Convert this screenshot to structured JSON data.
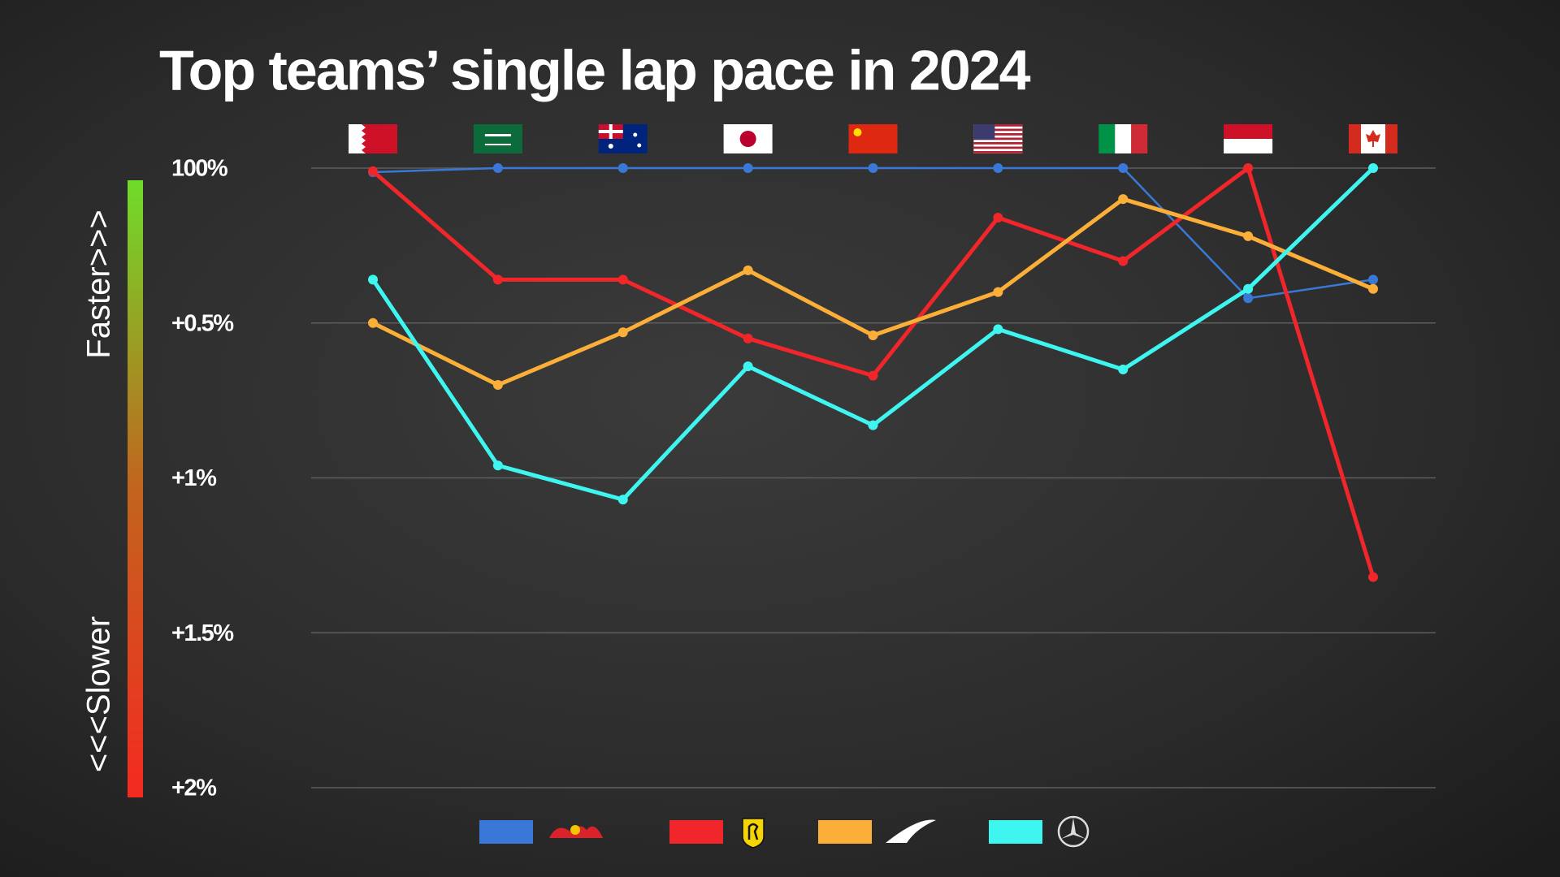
{
  "chart_data": {
    "type": "line",
    "title": "Top teams’ single lap pace in 2024",
    "side_labels": {
      "faster": "Faster>>>",
      "slower": "<<<Slower"
    },
    "categories": [
      null,
      null,
      null,
      null,
      null,
      null,
      null,
      null,
      null
    ],
    "series": [
      {
        "color": "#3a78d8",
        "values": [
          0.013,
          0,
          0,
          0,
          0,
          0,
          0,
          0.42,
          0.36
        ]
      },
      {
        "color": "#f0262a",
        "values": [
          0.01,
          0.36,
          0.36,
          0.55,
          0.67,
          0.16,
          0.3,
          0,
          1.32
        ]
      },
      {
        "color": "#fbae38",
        "values": [
          0.5,
          0.7,
          0.53,
          0.33,
          0.54,
          0.4,
          0.1,
          0.22,
          0.39
        ]
      },
      {
        "color": "#3ef5f0",
        "values": [
          0.36,
          0.96,
          1.07,
          0.64,
          0.83,
          0.52,
          0.65,
          0.39,
          0
        ]
      }
    ],
    "ylim": [
      2,
      0
    ],
    "yticks": [
      {
        "value": 0,
        "label": "100%"
      },
      {
        "value": 0.5,
        "label": "+0.5%"
      },
      {
        "value": 1,
        "label": "+1%"
      },
      {
        "value": 1.5,
        "label": "+1.5%"
      },
      {
        "value": 2,
        "label": "+2%"
      }
    ],
    "grid": true
  }
}
